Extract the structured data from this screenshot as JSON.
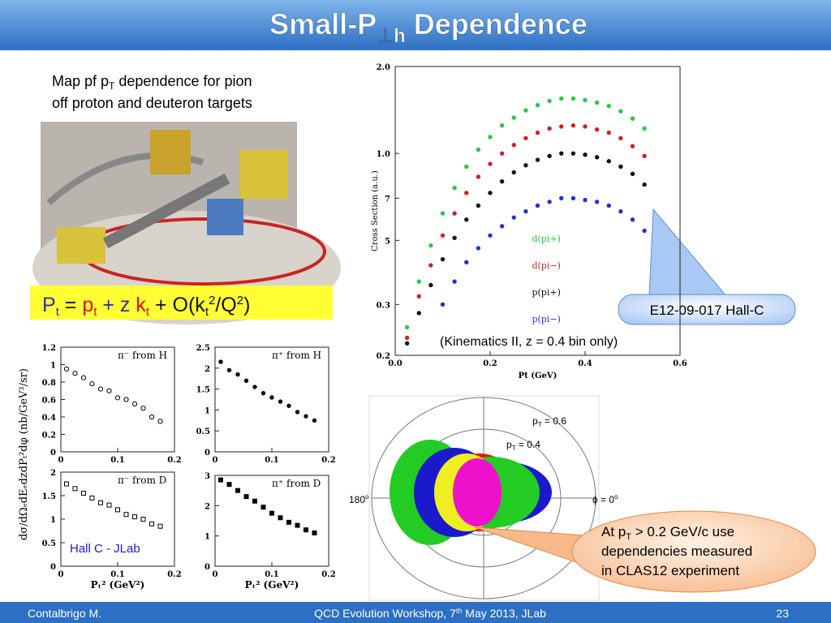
{
  "header": {
    "main": "Small-P",
    "sub": "⊥h",
    "rest": " Dependence"
  },
  "caption": {
    "line1": [
      "Map pf p",
      "T",
      " dependence for pion"
    ],
    "line2": "off proton and deuteron targets"
  },
  "formula": [
    "P",
    "t",
    " = ",
    "p",
    "t",
    " + z ",
    "k",
    "t",
    " + O(k",
    "t",
    "2",
    "/Q",
    "2",
    ")"
  ],
  "chart_data": [
    {
      "type": "scatter",
      "xlabel": "Pt (GeV)",
      "ylabel": "Cross Section (a.u.)",
      "annotation": "(Kinematics II, z = 0.4 bin only)",
      "log_y": true,
      "xlim": [
        0,
        0.6
      ],
      "ylim": [
        0.2,
        2.0
      ],
      "xticks": [
        {
          "value": 0,
          "label": "0.0"
        },
        0.2,
        0.4,
        0.6
      ],
      "yticks": [
        0.2,
        0.3,
        {
          "value": 0.5,
          "label": "5"
        },
        {
          "value": 0.7,
          "label": "7"
        },
        {
          "value": 1,
          "label": "1.0"
        },
        {
          "value": 2,
          "label": "2.0"
        }
      ],
      "x": [
        0.025,
        0.05,
        0.075,
        0.1,
        0.125,
        0.15,
        0.175,
        0.2,
        0.225,
        0.25,
        0.275,
        0.3,
        0.325,
        0.35,
        0.375,
        0.4,
        0.425,
        0.45,
        0.475,
        0.5,
        0.525
      ],
      "series": [
        {
          "name": "d(pi+)",
          "color": "#22cc44",
          "values": [
            0.25,
            0.36,
            0.48,
            0.62,
            0.76,
            0.9,
            1.03,
            1.14,
            1.25,
            1.33,
            1.41,
            1.47,
            1.52,
            1.55,
            1.55,
            1.53,
            1.5,
            1.46,
            1.4,
            1.32,
            1.22
          ]
        },
        {
          "name": "d(pi−)",
          "color": "#cc2222",
          "values": [
            0.23,
            0.32,
            0.41,
            0.52,
            0.62,
            0.73,
            0.83,
            0.92,
            1.0,
            1.07,
            1.13,
            1.18,
            1.22,
            1.24,
            1.25,
            1.24,
            1.21,
            1.18,
            1.13,
            1.06,
            0.98
          ]
        },
        {
          "name": "p(pi+)",
          "color": "#111111",
          "values": [
            0.22,
            0.28,
            0.35,
            0.43,
            0.51,
            0.59,
            0.66,
            0.73,
            0.8,
            0.86,
            0.91,
            0.95,
            0.98,
            1.0,
            1.0,
            0.99,
            0.97,
            0.94,
            0.9,
            0.85,
            0.78
          ]
        },
        {
          "name": "p(pi−)",
          "color": "#2233cc",
          "values": [
            null,
            null,
            null,
            0.3,
            0.36,
            0.42,
            0.47,
            0.52,
            0.56,
            0.6,
            0.63,
            0.66,
            0.68,
            0.7,
            0.7,
            0.69,
            0.68,
            0.66,
            0.63,
            0.59,
            0.54
          ]
        }
      ]
    },
    {
      "type": "scatter",
      "label": "π⁻ from H",
      "ylabel": "dσ/dΩₑdEₑdzdPₜ²dφ  (nb/GeV³/sr)",
      "marker": "open-circle",
      "xlim": [
        0,
        0.2
      ],
      "ylim": [
        0,
        1.2
      ],
      "xticks": [
        0,
        0.1,
        0.2
      ],
      "yticks": [
        0,
        0.2,
        0.4,
        0.6,
        0.8,
        1,
        1.2
      ],
      "x": [
        0.01,
        0.025,
        0.04,
        0.055,
        0.07,
        0.085,
        0.1,
        0.115,
        0.13,
        0.145,
        0.16,
        0.175
      ],
      "values": [
        0.95,
        0.9,
        0.85,
        0.78,
        0.72,
        0.7,
        0.62,
        0.6,
        0.55,
        0.5,
        0.4,
        0.35
      ],
      "color": "#000000"
    },
    {
      "type": "scatter",
      "label": "π⁺ from H",
      "marker": "circle",
      "xlim": [
        0,
        0.2
      ],
      "ylim": [
        0,
        2.5
      ],
      "xticks": [
        0,
        0.1,
        0.2
      ],
      "yticks": [
        0,
        0.5,
        1,
        1.5,
        2,
        2.5
      ],
      "x": [
        0.01,
        0.025,
        0.04,
        0.055,
        0.07,
        0.085,
        0.1,
        0.115,
        0.13,
        0.145,
        0.16,
        0.175
      ],
      "values": [
        2.15,
        1.95,
        1.85,
        1.7,
        1.55,
        1.4,
        1.3,
        1.2,
        1.1,
        0.95,
        0.85,
        0.75
      ],
      "color": "#000000"
    },
    {
      "type": "scatter",
      "label": "π⁻ from D",
      "xlabel": "Pₜ² (GeV²)",
      "marker": "open-square",
      "xlim": [
        0,
        0.2
      ],
      "ylim": [
        0,
        2
      ],
      "xticks": [
        0,
        0.1,
        0.2
      ],
      "yticks": [
        0,
        0.5,
        1,
        1.5,
        2
      ],
      "x": [
        0.01,
        0.025,
        0.04,
        0.055,
        0.07,
        0.085,
        0.1,
        0.115,
        0.13,
        0.145,
        0.16,
        0.175
      ],
      "values": [
        1.75,
        1.65,
        1.55,
        1.45,
        1.35,
        1.3,
        1.2,
        1.1,
        1.05,
        1.0,
        0.9,
        0.85
      ],
      "color": "#000000"
    },
    {
      "type": "scatter",
      "label": "π⁺ from D",
      "xlabel": "Pₜ² (GeV²)",
      "marker": "square",
      "xlim": [
        0,
        0.2
      ],
      "ylim": [
        0,
        3
      ],
      "xticks": [
        0,
        0.1,
        0.2
      ],
      "yticks": [
        0,
        1,
        2,
        3
      ],
      "x": [
        0.01,
        0.025,
        0.04,
        0.055,
        0.07,
        0.085,
        0.1,
        0.115,
        0.13,
        0.145,
        0.16,
        0.175
      ],
      "values": [
        2.85,
        2.7,
        2.5,
        2.3,
        2.15,
        1.95,
        1.75,
        1.6,
        1.45,
        1.35,
        1.2,
        1.1
      ],
      "color": "#000000"
    }
  ],
  "panels_note": "Hall C - JLab",
  "clas12": {
    "pt_high": [
      "p",
      "T",
      " = 0.6"
    ],
    "pt_low": [
      "p",
      "T",
      " = 0.4"
    ],
    "left": [
      "180",
      "o"
    ],
    "right": [
      "ϕ = 0",
      "o"
    ]
  },
  "callouts": {
    "hallc": "E12-09-017  Hall-C",
    "clas": {
      "line1": [
        "At p",
        "T",
        " > 0.2 GeV/c use"
      ],
      "line2": "dependencies measured",
      "line3": "in CLAS12 experiment"
    }
  },
  "footer": {
    "author": "Contalbrigo M.",
    "event": [
      "QCD Evolution Workshop, 7",
      "th",
      " May 2013, JLab"
    ],
    "page": "23"
  }
}
